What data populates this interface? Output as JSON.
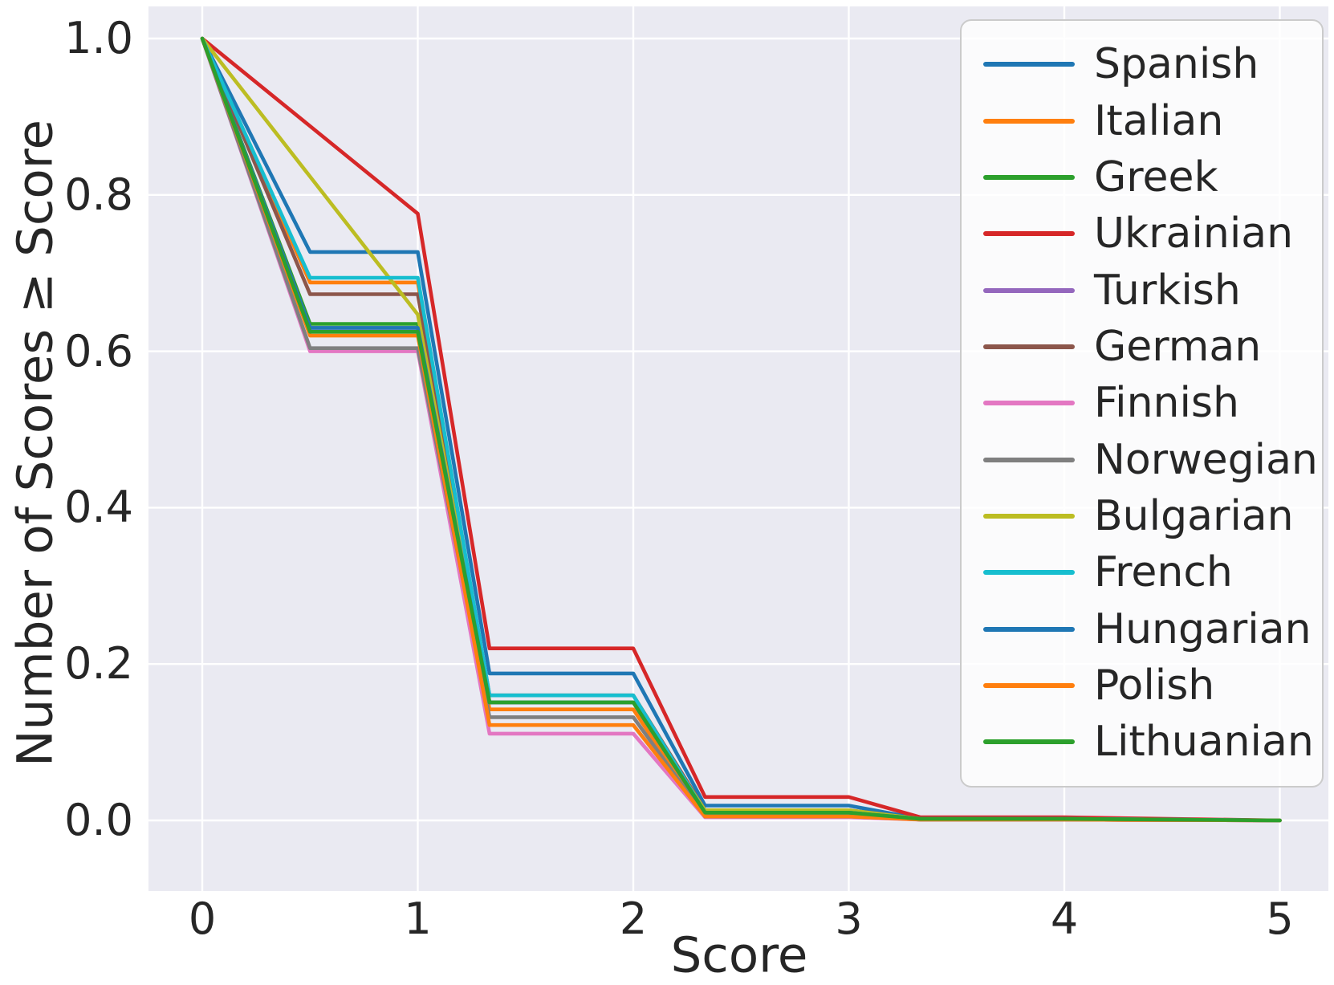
{
  "chart_data": {
    "type": "line",
    "title": "",
    "xlabel": "Score",
    "ylabel": "Number of Scores ≥ Score",
    "xlim": [
      -0.25,
      5.23
    ],
    "ylim": [
      -0.09,
      1.04
    ],
    "grid": true,
    "plot_background_color": "#eaeaf2",
    "gridline_color": "#ffffff",
    "text_color": "#262626",
    "legend_position": "upper right",
    "x_tick_labels": [
      "0",
      "1",
      "2",
      "3",
      "4",
      "5"
    ],
    "y_tick_labels": [
      "1.0",
      "0.8",
      "0.6",
      "0.4",
      "0.2",
      "0.0"
    ],
    "series": [
      {
        "name": "Spanish",
        "color": "#1f77b4",
        "points": [
          [
            0,
            1.0
          ],
          [
            0.5,
            0.727
          ],
          [
            1,
            0.727
          ],
          [
            1.333,
            0.188
          ],
          [
            2,
            0.188
          ],
          [
            2.333,
            0.019
          ],
          [
            3,
            0.019
          ],
          [
            3.333,
            0.002
          ],
          [
            4,
            0.002
          ],
          [
            5,
            0.0
          ]
        ]
      },
      {
        "name": "Italian",
        "color": "#ff7f0e",
        "points": [
          [
            0,
            1.0
          ],
          [
            0.5,
            0.688
          ],
          [
            1,
            0.688
          ],
          [
            1.333,
            0.142
          ],
          [
            2,
            0.142
          ],
          [
            2.333,
            0.005
          ],
          [
            3,
            0.005
          ],
          [
            3.333,
            0.001
          ],
          [
            4,
            0.001
          ],
          [
            5,
            0.0
          ]
        ]
      },
      {
        "name": "Greek",
        "color": "#2ca02c",
        "points": [
          [
            0,
            1.0
          ],
          [
            0.5,
            0.635
          ],
          [
            1,
            0.635
          ],
          [
            1.333,
            0.151
          ],
          [
            2,
            0.151
          ],
          [
            2.333,
            0.01
          ],
          [
            3,
            0.01
          ],
          [
            3.333,
            0.002
          ],
          [
            4,
            0.002
          ],
          [
            5,
            0.0
          ]
        ]
      },
      {
        "name": "Ukrainian",
        "color": "#d62728",
        "points": [
          [
            0,
            1.0
          ],
          [
            1,
            0.776
          ],
          [
            1.333,
            0.22
          ],
          [
            2,
            0.22
          ],
          [
            2.333,
            0.03
          ],
          [
            3,
            0.03
          ],
          [
            3.333,
            0.004
          ],
          [
            4,
            0.004
          ],
          [
            5,
            0.0
          ]
        ]
      },
      {
        "name": "Turkish",
        "color": "#9467bd",
        "points": [
          [
            0,
            1.0
          ],
          [
            0.5,
            0.63
          ],
          [
            1,
            0.63
          ],
          [
            1.333,
            0.151
          ],
          [
            2,
            0.151
          ],
          [
            2.333,
            0.01
          ],
          [
            3,
            0.01
          ],
          [
            3.333,
            0.001
          ],
          [
            4,
            0.001
          ],
          [
            5,
            0.0
          ]
        ]
      },
      {
        "name": "German",
        "color": "#8c564b",
        "points": [
          [
            0,
            1.0
          ],
          [
            0.5,
            0.673
          ],
          [
            1,
            0.673
          ],
          [
            1.333,
            0.16
          ],
          [
            2,
            0.16
          ],
          [
            2.333,
            0.013
          ],
          [
            3,
            0.013
          ],
          [
            3.333,
            0.002
          ],
          [
            4,
            0.002
          ],
          [
            5,
            0.0
          ]
        ]
      },
      {
        "name": "Finnish",
        "color": "#e377c2",
        "points": [
          [
            0,
            1.0
          ],
          [
            0.5,
            0.6
          ],
          [
            1,
            0.6
          ],
          [
            1.333,
            0.111
          ],
          [
            2,
            0.111
          ],
          [
            2.333,
            0.004
          ],
          [
            3,
            0.004
          ],
          [
            3.333,
            0.001
          ],
          [
            4,
            0.001
          ],
          [
            5,
            0.0
          ]
        ]
      },
      {
        "name": "Norwegian",
        "color": "#7f7f7f",
        "points": [
          [
            0,
            1.0
          ],
          [
            0.5,
            0.604
          ],
          [
            1,
            0.604
          ],
          [
            1.333,
            0.132
          ],
          [
            2,
            0.132
          ],
          [
            2.333,
            0.005
          ],
          [
            3,
            0.005
          ],
          [
            3.333,
            0.001
          ],
          [
            4,
            0.001
          ],
          [
            5,
            0.0
          ]
        ]
      },
      {
        "name": "Bulgarian",
        "color": "#bcbd22",
        "points": [
          [
            0,
            1.0
          ],
          [
            1,
            0.647
          ],
          [
            1.333,
            0.151
          ],
          [
            2,
            0.151
          ],
          [
            2.333,
            0.013
          ],
          [
            3,
            0.013
          ],
          [
            3.333,
            0.002
          ],
          [
            4,
            0.002
          ],
          [
            5,
            0.0
          ]
        ]
      },
      {
        "name": "French",
        "color": "#17becf",
        "points": [
          [
            0,
            1.0
          ],
          [
            0.5,
            0.694
          ],
          [
            1,
            0.694
          ],
          [
            1.333,
            0.16
          ],
          [
            2,
            0.16
          ],
          [
            2.333,
            0.01
          ],
          [
            3,
            0.01
          ],
          [
            3.333,
            0.002
          ],
          [
            4,
            0.002
          ],
          [
            5,
            0.0
          ]
        ]
      },
      {
        "name": "Hungarian",
        "color": "#1f77b4",
        "points": [
          [
            0,
            1.0
          ],
          [
            0.5,
            0.63
          ],
          [
            1,
            0.63
          ],
          [
            1.333,
            0.151
          ],
          [
            2,
            0.151
          ],
          [
            2.333,
            0.01
          ],
          [
            3,
            0.01
          ],
          [
            3.333,
            0.002
          ],
          [
            4,
            0.002
          ],
          [
            5,
            0.0
          ]
        ]
      },
      {
        "name": "Polish",
        "color": "#ff7f0e",
        "points": [
          [
            0,
            1.0
          ],
          [
            0.5,
            0.62
          ],
          [
            1,
            0.62
          ],
          [
            1.333,
            0.122
          ],
          [
            2,
            0.122
          ],
          [
            2.333,
            0.005
          ],
          [
            3,
            0.005
          ],
          [
            3.333,
            0.001
          ],
          [
            4,
            0.001
          ],
          [
            5,
            0.0
          ]
        ]
      },
      {
        "name": "Lithuanian",
        "color": "#2ca02c",
        "points": [
          [
            0,
            1.0
          ],
          [
            0.5,
            0.625
          ],
          [
            1,
            0.625
          ],
          [
            1.333,
            0.151
          ],
          [
            2,
            0.151
          ],
          [
            2.333,
            0.01
          ],
          [
            3,
            0.01
          ],
          [
            3.333,
            0.002
          ],
          [
            4,
            0.002
          ],
          [
            5,
            0.0
          ]
        ]
      }
    ]
  }
}
